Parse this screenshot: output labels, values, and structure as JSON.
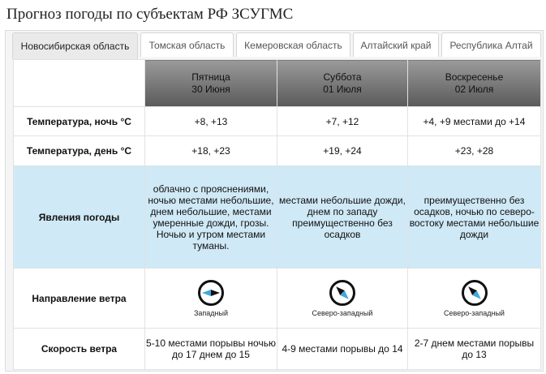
{
  "page_title": "Прогноз погоды по субъектам РФ ЗСУГМС",
  "tabs": [
    {
      "label": "Новосибирская область",
      "active": true
    },
    {
      "label": "Томская область",
      "active": false
    },
    {
      "label": "Кемеровская область",
      "active": false
    },
    {
      "label": "Алтайский край",
      "active": false
    },
    {
      "label": "Республика Алтай",
      "active": false
    }
  ],
  "days": [
    {
      "weekday": "Пятница",
      "date": "30 Июня"
    },
    {
      "weekday": "Суббота",
      "date": "01 Июля"
    },
    {
      "weekday": "Воскресенье",
      "date": "02 Июля"
    }
  ],
  "rows": {
    "temp_night": {
      "label": "Температура, ночь °C",
      "values": [
        "+8, +13",
        "+7, +12",
        "+4, +9 местами до +14"
      ]
    },
    "temp_day": {
      "label": "Температура, день °C",
      "values": [
        "+18, +23",
        "+19, +24",
        "+23, +28"
      ]
    },
    "phenomena": {
      "label": "Явления погоды",
      "values": [
        "облачно с прояснениями, ночью местами небольшие, днем небольшие, местами умеренные дожди, грозы. Ночью и утром местами туманы.",
        "местами небольшие дожди, днем по западу преимущественно без осадков",
        "преимущественно без осадков, ночью по северо-востоку местами небольшие дожди"
      ]
    },
    "wind_direction": {
      "label": "Направление ветра",
      "values": [
        "Западный",
        "Северо-западный",
        "Северо-западный"
      ],
      "icon": "wind-compass-icon"
    },
    "wind_speed": {
      "label": "Скорость ветра",
      "values": [
        "5-10 местами порывы ночью до 17 днем до 15",
        "4-9 местами порывы до 14",
        "2-7 днем местами порывы до 13"
      ]
    }
  },
  "colors": {
    "header_dark": "#5a5a5a",
    "phenomena_bg": "#cfe9f6",
    "compass_blue": "#3fa7e0"
  }
}
